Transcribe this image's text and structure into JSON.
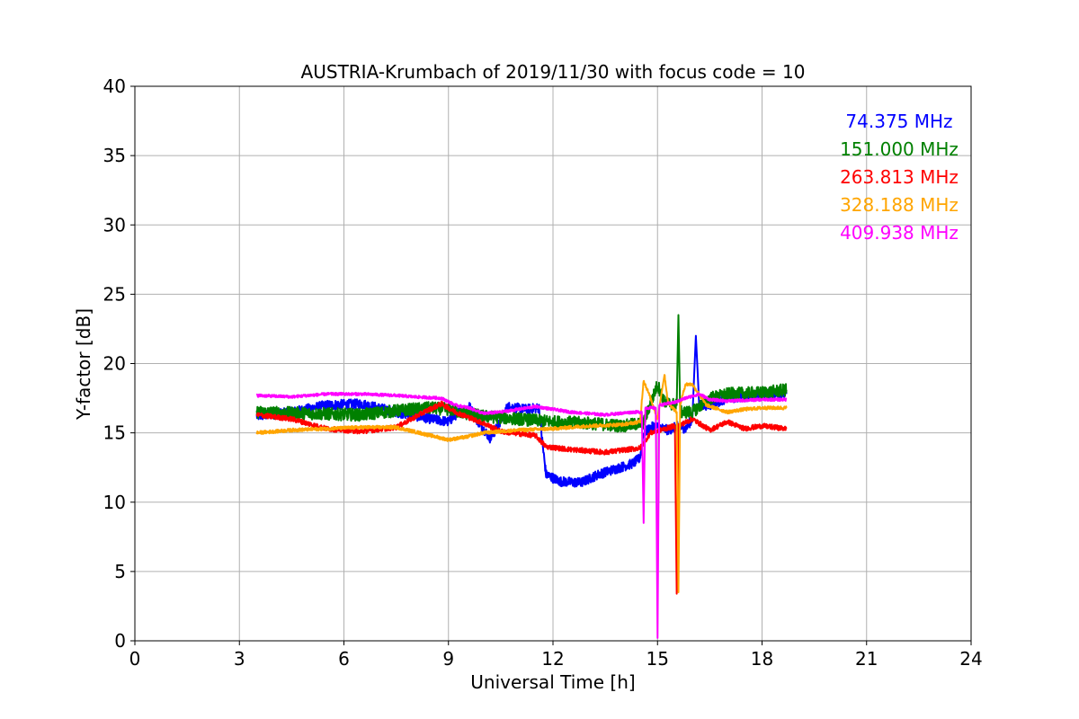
{
  "chart_data": {
    "type": "line",
    "title": "AUSTRIA-Krumbach of 2019/11/30 with focus code = 10",
    "xlabel": "Universal Time [h]",
    "ylabel": "Y-factor [dB]",
    "xlim": [
      0,
      24
    ],
    "ylim": [
      0,
      40
    ],
    "xticks": [
      0,
      3,
      6,
      9,
      12,
      15,
      18,
      21,
      24
    ],
    "yticks": [
      0,
      5,
      10,
      15,
      20,
      25,
      30,
      35,
      40
    ],
    "grid": true,
    "legend_position": "top-right",
    "series": [
      {
        "name": "74.375 MHz",
        "color": "#0000ff",
        "noise": 0.35,
        "points": [
          [
            3.5,
            16.2
          ],
          [
            4.5,
            16.5
          ],
          [
            5.5,
            17.0
          ],
          [
            6.5,
            17.1
          ],
          [
            7.5,
            16.5
          ],
          [
            8.5,
            16.0
          ],
          [
            9.0,
            15.8
          ],
          [
            9.3,
            16.5
          ],
          [
            9.6,
            16.9
          ],
          [
            9.8,
            16.0
          ],
          [
            10.0,
            15.3
          ],
          [
            10.2,
            14.6
          ],
          [
            10.4,
            15.4
          ],
          [
            10.7,
            16.9
          ],
          [
            11.2,
            16.7
          ],
          [
            11.6,
            16.8
          ],
          [
            11.7,
            14.2
          ],
          [
            11.8,
            12.0
          ],
          [
            12.2,
            11.5
          ],
          [
            12.8,
            11.4
          ],
          [
            13.3,
            12.0
          ],
          [
            13.8,
            12.4
          ],
          [
            14.3,
            12.8
          ],
          [
            14.5,
            13.2
          ],
          [
            14.6,
            15.0
          ],
          [
            14.9,
            15.5
          ],
          [
            15.3,
            15.2
          ],
          [
            15.6,
            15.5
          ],
          [
            15.8,
            15.3
          ],
          [
            16.0,
            16.0
          ],
          [
            16.1,
            22.0
          ],
          [
            16.2,
            17.0
          ],
          [
            16.5,
            17.0
          ],
          [
            17.0,
            17.5
          ],
          [
            17.5,
            17.6
          ],
          [
            18.0,
            17.8
          ],
          [
            18.7,
            17.8
          ]
        ]
      },
      {
        "name": "151.000 MHz",
        "color": "#008000",
        "noise": 0.45,
        "points": [
          [
            3.5,
            16.5
          ],
          [
            5.0,
            16.4
          ],
          [
            6.5,
            16.3
          ],
          [
            7.5,
            16.6
          ],
          [
            8.5,
            16.8
          ],
          [
            9.0,
            16.7
          ],
          [
            9.5,
            16.4
          ],
          [
            10.0,
            16.2
          ],
          [
            11.0,
            16.0
          ],
          [
            12.0,
            15.8
          ],
          [
            13.0,
            15.7
          ],
          [
            14.0,
            15.5
          ],
          [
            14.6,
            15.7
          ],
          [
            15.0,
            18.5
          ],
          [
            15.2,
            17.2
          ],
          [
            15.55,
            17.0
          ],
          [
            15.6,
            23.5
          ],
          [
            15.65,
            16.5
          ],
          [
            16.0,
            16.5
          ],
          [
            16.5,
            17.5
          ],
          [
            17.0,
            17.8
          ],
          [
            18.0,
            17.9
          ],
          [
            18.7,
            18.1
          ]
        ]
      },
      {
        "name": "263.813 MHz",
        "color": "#ff0000",
        "noise": 0.18,
        "points": [
          [
            3.5,
            16.3
          ],
          [
            4.5,
            16.0
          ],
          [
            5.5,
            15.3
          ],
          [
            6.5,
            15.1
          ],
          [
            7.5,
            15.4
          ],
          [
            8.3,
            16.5
          ],
          [
            8.8,
            17.1
          ],
          [
            9.2,
            16.5
          ],
          [
            10.0,
            15.7
          ],
          [
            10.5,
            15.1
          ],
          [
            11.5,
            14.8
          ],
          [
            11.8,
            14.0
          ],
          [
            12.5,
            13.8
          ],
          [
            13.5,
            13.6
          ],
          [
            14.5,
            13.9
          ],
          [
            14.8,
            15.0
          ],
          [
            15.5,
            15.5
          ],
          [
            15.55,
            3.4
          ],
          [
            15.6,
            15.5
          ],
          [
            16.0,
            16.0
          ],
          [
            16.5,
            15.2
          ],
          [
            17.0,
            15.8
          ],
          [
            17.5,
            15.3
          ],
          [
            18.0,
            15.5
          ],
          [
            18.7,
            15.3
          ]
        ]
      },
      {
        "name": "328.188 MHz",
        "color": "#ffa500",
        "noise": 0.12,
        "points": [
          [
            3.5,
            15.0
          ],
          [
            4.5,
            15.2
          ],
          [
            5.5,
            15.3
          ],
          [
            6.5,
            15.4
          ],
          [
            7.5,
            15.4
          ],
          [
            8.5,
            14.8
          ],
          [
            9.0,
            14.5
          ],
          [
            9.5,
            14.7
          ],
          [
            10.0,
            15.0
          ],
          [
            11.0,
            15.2
          ],
          [
            12.0,
            15.3
          ],
          [
            13.0,
            15.5
          ],
          [
            14.0,
            15.6
          ],
          [
            14.5,
            15.8
          ],
          [
            14.6,
            18.8
          ],
          [
            14.8,
            17.5
          ],
          [
            15.0,
            16.0
          ],
          [
            15.2,
            19.2
          ],
          [
            15.3,
            17.2
          ],
          [
            15.55,
            16.5
          ],
          [
            15.6,
            3.5
          ],
          [
            15.65,
            17.0
          ],
          [
            15.8,
            18.5
          ],
          [
            16.0,
            18.5
          ],
          [
            16.4,
            17.0
          ],
          [
            17.0,
            16.5
          ],
          [
            17.5,
            16.7
          ],
          [
            18.0,
            16.8
          ],
          [
            18.7,
            16.8
          ]
        ]
      },
      {
        "name": "409.938 MHz",
        "color": "#ff00ff",
        "noise": 0.1,
        "points": [
          [
            3.5,
            17.7
          ],
          [
            4.5,
            17.6
          ],
          [
            5.5,
            17.8
          ],
          [
            6.5,
            17.8
          ],
          [
            7.5,
            17.7
          ],
          [
            8.0,
            17.6
          ],
          [
            8.8,
            17.5
          ],
          [
            9.2,
            17.0
          ],
          [
            9.6,
            16.8
          ],
          [
            10.0,
            16.4
          ],
          [
            10.5,
            16.5
          ],
          [
            11.5,
            16.9
          ],
          [
            12.5,
            16.5
          ],
          [
            13.5,
            16.3
          ],
          [
            14.3,
            16.5
          ],
          [
            14.55,
            16.5
          ],
          [
            14.6,
            8.5
          ],
          [
            14.65,
            16.8
          ],
          [
            14.95,
            16.8
          ],
          [
            15.0,
            0.2
          ],
          [
            15.05,
            17.0
          ],
          [
            15.5,
            17.2
          ],
          [
            15.8,
            17.5
          ],
          [
            16.2,
            17.8
          ],
          [
            16.5,
            17.4
          ],
          [
            17.0,
            17.3
          ],
          [
            18.0,
            17.4
          ],
          [
            18.7,
            17.4
          ]
        ]
      }
    ]
  }
}
